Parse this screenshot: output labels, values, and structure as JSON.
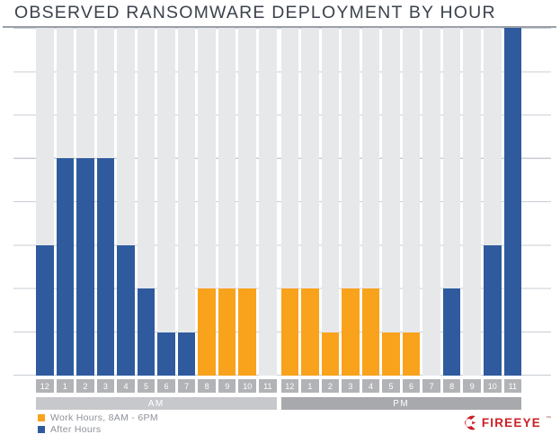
{
  "title": "OBSERVED RANSOMWARE DEPLOYMENT BY HOUR",
  "chart_data": {
    "type": "bar",
    "title": "OBSERVED RANSOMWARE DEPLOYMENT BY HOUR",
    "ylabel": "",
    "y_tick_labels": [],
    "ylim": [
      0,
      8
    ],
    "grid_intervals": 8,
    "grid": true,
    "legend_position": "bottom-left",
    "values_unit": "gridline units (no numeric y-axis shown in figure)",
    "groups": [
      {
        "label": "AM",
        "hours": [
          "12",
          "1",
          "2",
          "3",
          "4",
          "5",
          "6",
          "7",
          "8",
          "9",
          "10",
          "11"
        ]
      },
      {
        "label": "PM",
        "hours": [
          "12",
          "1",
          "2",
          "3",
          "4",
          "5",
          "6",
          "7",
          "8",
          "9",
          "10",
          "11"
        ]
      }
    ],
    "categories": [
      "12 AM",
      "1 AM",
      "2 AM",
      "3 AM",
      "4 AM",
      "5 AM",
      "6 AM",
      "7 AM",
      "8 AM",
      "9 AM",
      "10 AM",
      "11 AM",
      "12 PM",
      "1 PM",
      "2 PM",
      "3 PM",
      "4 PM",
      "5 PM",
      "6 PM",
      "7 PM",
      "8 PM",
      "9 PM",
      "10 PM",
      "11 PM"
    ],
    "values": [
      3,
      5,
      5,
      5,
      3,
      2,
      1,
      1,
      2,
      2,
      2,
      0,
      2,
      2,
      1,
      2,
      2,
      1,
      1,
      0,
      2,
      0,
      3,
      8
    ],
    "series_membership": [
      "after",
      "after",
      "after",
      "after",
      "after",
      "after",
      "after",
      "after",
      "work",
      "work",
      "work",
      "work",
      "work",
      "work",
      "work",
      "work",
      "work",
      "work",
      "work",
      "after",
      "after",
      "after",
      "after",
      "after"
    ]
  },
  "legend": {
    "items": [
      {
        "id": "work",
        "label": "Work Hours, 8AM - 6PM",
        "color": "#F9A21C"
      },
      {
        "id": "after",
        "label": "After Hours",
        "color": "#2F5B9E"
      }
    ]
  },
  "colors": {
    "work_bar": "#F9A21C",
    "after_bar": "#2F5B9E",
    "column_band": "#E7E8EA",
    "gridline": "#C9CDD3",
    "hour_box": "#B1B3B6",
    "am_band": "#C6C8CB",
    "pm_band": "#A7A9AC",
    "title_text": "#3B424C",
    "brand_red": "#CB2026"
  },
  "logo": {
    "brand": "FIREEYE",
    "trademark": "™"
  }
}
